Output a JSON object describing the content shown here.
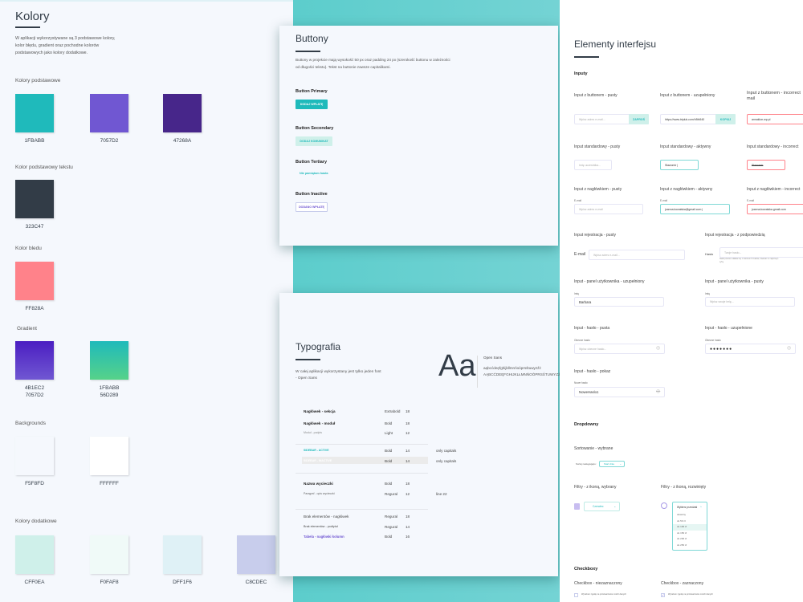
{
  "colors": {
    "title": "Kolory",
    "description": [
      "W aplikacji wykorzystywane są 3 podstawowe kolory,",
      "kolor błędu, gradient oraz pochodne kolorów",
      "podstawowych jako kolory dodatkowe."
    ],
    "groups": [
      {
        "label": "Kolory podstawowe",
        "swatches": [
          {
            "hex": "1FBABB",
            "fill": "#1FBABB"
          },
          {
            "hex": "7057D2",
            "fill": "#7057D2"
          },
          {
            "hex": "47268A",
            "fill": "#47268A"
          }
        ]
      },
      {
        "label": "Kolor podstawowy tekstu",
        "swatches": [
          {
            "hex": "323C47",
            "fill": "#323C47"
          }
        ]
      },
      {
        "label": "Kolor bledu",
        "swatches": [
          {
            "hex": "FF828A",
            "fill": "#FF828A"
          }
        ]
      },
      {
        "label": "Gradient",
        "swatches": [
          {
            "hex": "4B1EC2\n7057D2",
            "fill": "linear-gradient(#4B1EC2,#7057D2)"
          },
          {
            "hex": "1FBABB\n56D289",
            "fill": "linear-gradient(#1FBABB,#56D289)"
          }
        ]
      },
      {
        "label": "Backgrounds",
        "swatches": [
          {
            "hex": "F5F8FD",
            "fill": "#F5F8FD"
          },
          {
            "hex": "FFFFFF",
            "fill": "#FFFFFF"
          }
        ]
      },
      {
        "label": "Kolory dodatkowe",
        "swatches": [
          {
            "hex": "CFF0EA",
            "fill": "#CFF0EA"
          },
          {
            "hex": "F0FAF8",
            "fill": "#F0FAF8"
          },
          {
            "hex": "DFF1F6",
            "fill": "#DFF1F6"
          },
          {
            "hex": "C8CDEC",
            "fill": "#C8CDEC"
          }
        ]
      }
    ]
  },
  "buttons": {
    "title": "Buttony",
    "description": [
      "Buttony w projekcie mają wysokość 50 px oraz padding 24 px (szerokość buttonu w zależności",
      "od długości tekstu). Tekst na buttonie zawsze capitalikami."
    ],
    "primary_label": "Button Primary",
    "primary_text": "DODAJ WPŁATĘ",
    "secondary_label": "Button Secondary",
    "secondary_text": "DODAJ KOMUNIKAT",
    "tertiary_label": "Button Tertiary",
    "tertiary_text": "Nie pamiętam hasła",
    "inactive_label": "Button Inactive",
    "inactive_text": "DODANO WPŁATĘ"
  },
  "typography": {
    "title": "Typografia",
    "description": [
      "W całej aplikacji wykorzystany jest tylko jeden font",
      "- Open Sans"
    ],
    "sample": "Aa",
    "font_name": "Open Sans",
    "lower": "aąbcćdeęfghijklłmnńoóprsśtuwyzźż",
    "upper": "AĄBCĆDEĘFGHIJKLŁMNŃOÓPRSŚTUWYZŹŻ",
    "rows": [
      {
        "name": "Nagłówek - sekcja",
        "weight": "Extrabold",
        "size": "18",
        "note": ""
      },
      {
        "name": "Nagłówek - moduł",
        "weight": "Bold",
        "size": "18",
        "note": ""
      },
      {
        "name": "Moduł - podpis",
        "weight": "Light",
        "size": "12",
        "note": ""
      },
      {
        "name": "SIDEBAR - ACTIVE",
        "weight": "Bold",
        "size": "14",
        "note": "only capitals"
      },
      {
        "name": "SIDEBAR - INACTIVE",
        "weight": "Bold",
        "size": "14",
        "note": "only capitals"
      },
      {
        "name": "Nazwa wycieczki",
        "weight": "Bold",
        "size": "18",
        "note": ""
      },
      {
        "name": "Paragraf - opis wycieczki",
        "weight": "Regural",
        "size": "12",
        "note": "line 22"
      },
      {
        "name": "Brak elementów - nagłówek",
        "weight": "Regural",
        "size": "18",
        "note": ""
      },
      {
        "name": "Brak elementów - podtytuł",
        "weight": "Regural",
        "size": "14",
        "note": ""
      },
      {
        "name": "Tabela - nagłówki kolumn",
        "weight": "Bold",
        "size": "16",
        "note": ""
      }
    ]
  },
  "interface": {
    "title": "Elementy interfejsu",
    "inputs_heading": "Inputy",
    "inputs": {
      "btn_empty_label": "Input z buttonem - pusty",
      "btn_empty_placeholder": "Wpisz adres e-mail...",
      "btn_empty_button": "ZAPROŚ",
      "btn_filled_label": "Input z buttonem - uzupełniony",
      "btn_filled_value": "https://www.tripluk.com/h5fx540",
      "btn_filled_button": "KOPIUJ",
      "btn_incorrect_label": "Input z buttonem - incorrect mail",
      "btn_incorrect_value": "annaklon.wp.pl",
      "std_empty_label": "Input standardowy - pusty",
      "std_empty_placeholder": "Imię uczestnika...",
      "std_active_label": "Input standardowy - aktywny",
      "std_active_value": "Sławomir |",
      "std_incorrect_label": "Input standardowy - incorrect",
      "std_incorrect_value": "Sławomir",
      "hdr_empty_label": "Input z nagłówkiem - pusty",
      "hdr_field_label": "E-mail",
      "hdr_empty_placeholder": "Wpisz adres e-mail",
      "hdr_active_label": "Input z nagłówkiem - aktywny",
      "hdr_active_value": "joanna.kowalska@gmail.com |",
      "hdr_incorrect_label": "Input z nagłówkiem - incorrect",
      "hdr_incorrect_value": "joanna.kowalska.gmail.com",
      "reg_empty_label": "Input rejestracja - pusty",
      "reg_email": "E-mail",
      "reg_email_placeholder": "Wpisz adres e-mail...",
      "reg_hint_label": "Input rejestracja - z podpowiedzią",
      "reg_pass": "Hasło",
      "reg_pass_placeholder": "Twoje hasło...",
      "reg_hint": "Hasło powinno składać się z minimum 8 znaków, zawierać co najmniej 1",
      "reg_hint2": "cyfrę",
      "panel_filled_label": "Input - panel użytkownika - uzupełniony",
      "panel_name": "Imię",
      "panel_filled_value": "Barbara",
      "panel_empty_label": "Input - panel użytkownika - pusty",
      "panel_empty_placeholder": "Wpisz swoje imię...",
      "pass_empty_label": "Input - hasło - pusta",
      "pass_current": "Obecne hasło",
      "pass_empty_placeholder": "Wpisz obecne hasło...",
      "pass_filled_label": "Input - hasło - uzupełnione",
      "pass_filled_value": "●●●●●●●",
      "pass_show_label": "Input - hasło - pokaz",
      "pass_new": "Nowe hasło",
      "pass_show_value": "NoweHaslo1"
    },
    "dropdowns_heading": "Dropdowny",
    "dropdowns": {
      "sort_label": "Sortowanie - wybrane",
      "sort_by": "Sortuj następująco:",
      "sort_value": "Start dnia",
      "filter_selected_label": "Filtry - z ikoną, wybrany",
      "filter_selected_value": "Czerwiec",
      "filter_open_label": "Filtry - z ikoną, rozwinięty",
      "filter_open_value": "Wybierz przedział",
      "options": [
        "dowolny",
        "do 50 zł",
        "do 100 zł",
        "do 150 zł",
        "do 200 zł",
        "do 250 zł"
      ],
      "highlighted_index": 2
    },
    "checkboxes_heading": "Checkboxy",
    "checkboxes": {
      "unchecked_label": "Checkbox - niezaznaczony",
      "checked_label": "Checkbox - zaznaczony",
      "text": "Wyrażam zgodę na przetwarzanie moich danych"
    }
  }
}
